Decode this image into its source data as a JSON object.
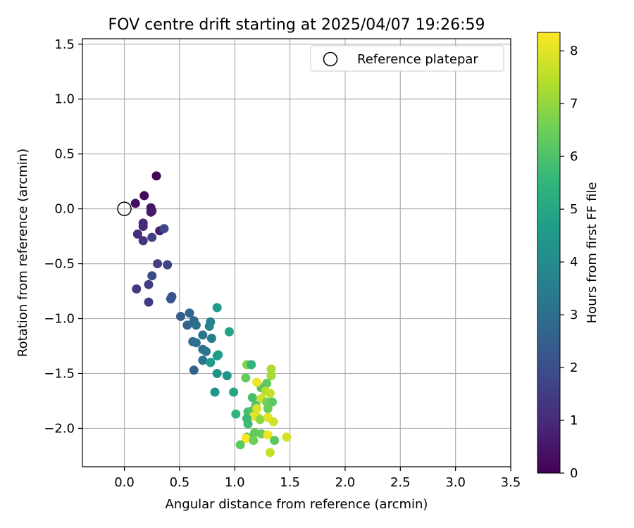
{
  "chart_data": {
    "type": "scatter",
    "title": "FOV centre drift starting at 2025/04/07 19:26:59",
    "xlabel": "Angular distance from reference (arcmin)",
    "ylabel": "Rotation from reference (arcmin)",
    "xlim": [
      -0.38,
      3.5
    ],
    "ylim": [
      -2.35,
      1.55
    ],
    "xticks": [
      "0.0",
      "0.5",
      "1.0",
      "1.5",
      "2.0",
      "2.5",
      "3.0",
      "3.5"
    ],
    "xtick_values": [
      0.0,
      0.5,
      1.0,
      1.5,
      2.0,
      2.5,
      3.0,
      3.5
    ],
    "yticks": [
      "1.5",
      "1.0",
      "0.5",
      "0.0",
      "−0.5",
      "−1.0",
      "−1.5",
      "−2.0"
    ],
    "ytick_values": [
      1.5,
      1.0,
      0.5,
      0.0,
      -0.5,
      -1.0,
      -1.5,
      -2.0
    ],
    "grid": true,
    "legend": {
      "position": "top-right",
      "entries": [
        {
          "label": "Reference platepar",
          "marker": "open-circle"
        }
      ]
    },
    "reference_point": {
      "x": 0.0,
      "y": 0.0
    },
    "colorbar": {
      "label": "Hours from first FF file",
      "min": 0,
      "max": 8.35,
      "ticks": [
        "0",
        "1",
        "2",
        "3",
        "4",
        "5",
        "6",
        "7",
        "8"
      ],
      "tick_values": [
        0,
        1,
        2,
        3,
        4,
        5,
        6,
        7,
        8
      ],
      "colormap": "viridis"
    },
    "points": [
      {
        "x": 0.29,
        "y": 0.3,
        "c": 0.1
      },
      {
        "x": 0.18,
        "y": 0.12,
        "c": 0.2
      },
      {
        "x": 0.1,
        "y": 0.05,
        "c": 0.3
      },
      {
        "x": 0.24,
        "y": 0.01,
        "c": 0.4
      },
      {
        "x": 0.25,
        "y": -0.02,
        "c": 0.5
      },
      {
        "x": 0.24,
        "y": -0.03,
        "c": 0.6
      },
      {
        "x": 0.32,
        "y": -0.2,
        "c": 0.7
      },
      {
        "x": 0.17,
        "y": -0.13,
        "c": 0.9
      },
      {
        "x": 0.17,
        "y": -0.16,
        "c": 1.0
      },
      {
        "x": 0.12,
        "y": -0.23,
        "c": 1.1
      },
      {
        "x": 0.17,
        "y": -0.29,
        "c": 1.3
      },
      {
        "x": 0.25,
        "y": -0.26,
        "c": 1.6
      },
      {
        "x": 0.36,
        "y": -0.18,
        "c": 1.8
      },
      {
        "x": 0.3,
        "y": -0.5,
        "c": 1.6
      },
      {
        "x": 0.39,
        "y": -0.51,
        "c": 1.7
      },
      {
        "x": 0.25,
        "y": -0.61,
        "c": 1.9
      },
      {
        "x": 0.22,
        "y": -0.69,
        "c": 1.5
      },
      {
        "x": 0.11,
        "y": -0.73,
        "c": 1.4
      },
      {
        "x": 0.22,
        "y": -0.85,
        "c": 1.5
      },
      {
        "x": 0.43,
        "y": -0.8,
        "c": 2.1
      },
      {
        "x": 0.42,
        "y": -0.82,
        "c": 2.2
      },
      {
        "x": 0.51,
        "y": -0.98,
        "c": 2.4
      },
      {
        "x": 0.59,
        "y": -0.95,
        "c": 2.7
      },
      {
        "x": 0.63,
        "y": -1.02,
        "c": 2.8
      },
      {
        "x": 0.57,
        "y": -1.06,
        "c": 2.6
      },
      {
        "x": 0.65,
        "y": -1.06,
        "c": 3.0
      },
      {
        "x": 0.78,
        "y": -1.03,
        "c": 3.7
      },
      {
        "x": 0.77,
        "y": -1.07,
        "c": 3.8
      },
      {
        "x": 0.71,
        "y": -1.15,
        "c": 3.3
      },
      {
        "x": 0.79,
        "y": -1.18,
        "c": 3.6
      },
      {
        "x": 0.62,
        "y": -1.21,
        "c": 2.9
      },
      {
        "x": 0.65,
        "y": -1.22,
        "c": 3.0
      },
      {
        "x": 0.71,
        "y": -1.28,
        "c": 3.1
      },
      {
        "x": 0.74,
        "y": -1.3,
        "c": 3.3
      },
      {
        "x": 0.71,
        "y": -1.38,
        "c": 3.2
      },
      {
        "x": 0.78,
        "y": -1.4,
        "c": 4.6
      },
      {
        "x": 0.63,
        "y": -1.47,
        "c": 2.6
      },
      {
        "x": 0.84,
        "y": -0.9,
        "c": 4.5
      },
      {
        "x": 0.95,
        "y": -1.12,
        "c": 4.8
      },
      {
        "x": 0.85,
        "y": -1.33,
        "c": 4.7
      },
      {
        "x": 0.84,
        "y": -1.34,
        "c": 4.6
      },
      {
        "x": 0.84,
        "y": -1.5,
        "c": 4.2
      },
      {
        "x": 0.93,
        "y": -1.52,
        "c": 4.3
      },
      {
        "x": 0.82,
        "y": -1.67,
        "c": 4.3
      },
      {
        "x": 0.99,
        "y": -1.67,
        "c": 4.9
      },
      {
        "x": 1.11,
        "y": -1.42,
        "c": 6.8
      },
      {
        "x": 1.15,
        "y": -1.42,
        "c": 5.5
      },
      {
        "x": 1.1,
        "y": -1.54,
        "c": 6.4
      },
      {
        "x": 1.33,
        "y": -1.46,
        "c": 7.3
      },
      {
        "x": 1.33,
        "y": -1.52,
        "c": 7.2
      },
      {
        "x": 1.29,
        "y": -1.59,
        "c": 6.3
      },
      {
        "x": 1.24,
        "y": -1.63,
        "c": 6.1
      },
      {
        "x": 1.28,
        "y": -1.66,
        "c": 7.4
      },
      {
        "x": 1.32,
        "y": -1.68,
        "c": 7.6
      },
      {
        "x": 1.16,
        "y": -1.72,
        "c": 5.9
      },
      {
        "x": 1.24,
        "y": -1.73,
        "c": 7.7
      },
      {
        "x": 1.29,
        "y": -1.76,
        "c": 6.6
      },
      {
        "x": 1.34,
        "y": -1.76,
        "c": 6.2
      },
      {
        "x": 1.19,
        "y": -1.79,
        "c": 6.0
      },
      {
        "x": 1.3,
        "y": -1.82,
        "c": 6.4
      },
      {
        "x": 1.12,
        "y": -1.85,
        "c": 5.8
      },
      {
        "x": 1.16,
        "y": -1.84,
        "c": 6.0
      },
      {
        "x": 1.01,
        "y": -1.87,
        "c": 5.4
      },
      {
        "x": 1.17,
        "y": -1.89,
        "c": 8.1
      },
      {
        "x": 1.21,
        "y": -1.9,
        "c": 7.9
      },
      {
        "x": 1.23,
        "y": -1.92,
        "c": 6.9
      },
      {
        "x": 1.3,
        "y": -1.9,
        "c": 8.0
      },
      {
        "x": 1.35,
        "y": -1.94,
        "c": 7.8
      },
      {
        "x": 1.11,
        "y": -1.91,
        "c": 5.6
      },
      {
        "x": 1.12,
        "y": -1.96,
        "c": 5.7
      },
      {
        "x": 1.18,
        "y": -2.04,
        "c": 6.3
      },
      {
        "x": 1.24,
        "y": -2.05,
        "c": 6.4
      },
      {
        "x": 1.3,
        "y": -2.06,
        "c": 8.2
      },
      {
        "x": 1.11,
        "y": -2.08,
        "c": 6.0
      },
      {
        "x": 1.1,
        "y": -2.09,
        "c": 8.3
      },
      {
        "x": 1.17,
        "y": -2.11,
        "c": 6.5
      },
      {
        "x": 1.36,
        "y": -2.11,
        "c": 6.2
      },
      {
        "x": 1.47,
        "y": -2.08,
        "c": 7.8
      },
      {
        "x": 1.05,
        "y": -2.15,
        "c": 6.3
      },
      {
        "x": 1.32,
        "y": -2.22,
        "c": 7.6
      },
      {
        "x": 1.2,
        "y": -1.58,
        "c": 8.2
      },
      {
        "x": 1.2,
        "y": -1.82,
        "c": 7.9
      }
    ]
  },
  "colors": {
    "grid": "#b0b0b0",
    "viridis_stops": [
      "#440154",
      "#482878",
      "#3e4989",
      "#31688e",
      "#26828e",
      "#1f9e89",
      "#35b779",
      "#6ece58",
      "#b5de2b",
      "#fde725"
    ]
  }
}
